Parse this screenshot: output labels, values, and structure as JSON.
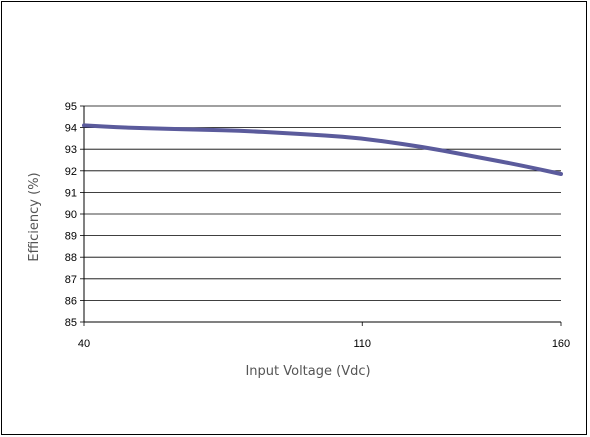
{
  "chart_data": {
    "type": "line",
    "title": "",
    "xlabel": "Input Voltage (Vdc)",
    "ylabel": "Efficiency (%)",
    "xlim": [
      40,
      160
    ],
    "ylim": [
      85,
      95
    ],
    "x_ticks": [
      40,
      110,
      160
    ],
    "y_ticks": [
      85,
      86,
      87,
      88,
      89,
      90,
      91,
      92,
      93,
      94,
      95
    ],
    "grid": "horizontal",
    "legend": "none",
    "series": [
      {
        "color": "#5b5b9c",
        "x": [
          40,
          50,
          60,
          70,
          80,
          90,
          100,
          110,
          120,
          130,
          140,
          150,
          160
        ],
        "y": [
          94.1,
          94.0,
          93.95,
          93.9,
          93.85,
          93.75,
          93.65,
          93.5,
          93.25,
          92.95,
          92.6,
          92.25,
          91.85
        ]
      }
    ]
  }
}
